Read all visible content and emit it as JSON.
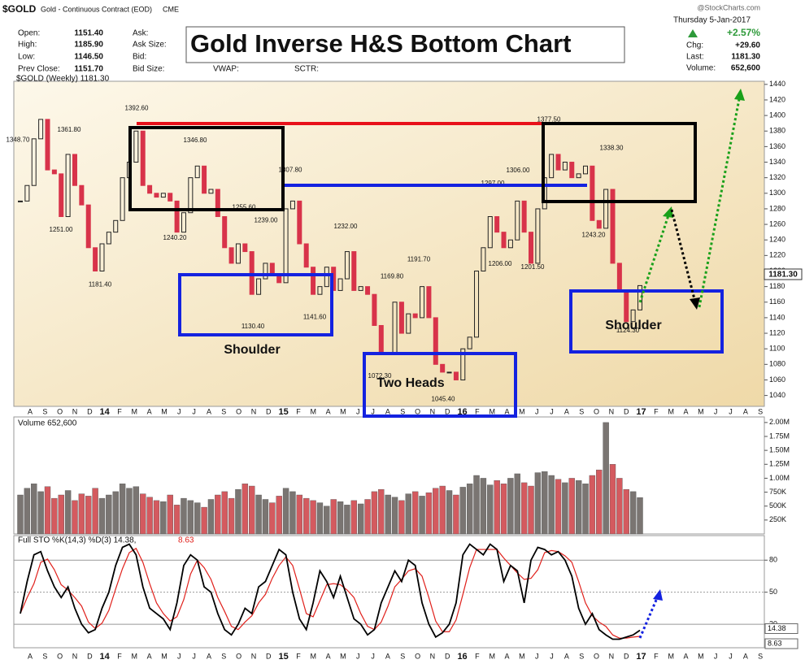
{
  "header": {
    "symbol": "$GOLD",
    "name": "Gold - Continuous Contract (EOD)",
    "exchange": "CME",
    "open_label": "Open:",
    "open": "1151.40",
    "high_label": "High:",
    "high": "1185.90",
    "low_label": "Low:",
    "low": "1146.50",
    "prev_label": "Prev Close:",
    "prev": "1151.70",
    "ask": "Ask:",
    "ask_size": "Ask Size:",
    "bid": "Bid:",
    "bid_size": "Bid Size:",
    "vwap": "VWAP:",
    "sctr": "SCTR:",
    "date": "Thursday  5-Jan-2017",
    "pct": "+2.57%",
    "chg_label": "Chg:",
    "chg": "+29.60",
    "last_label": "Last:",
    "last": "1181.30",
    "volume_label": "Volume:",
    "volume": "652,600",
    "source": "@StockCharts.com"
  },
  "chart_data": [
    {
      "type": "candlestick",
      "title": "Gold Inverse H&S Bottom Chart",
      "label": "$GOLD (Weekly) 1181.30",
      "color_up": "#222222",
      "color_down": "#d8334a",
      "values": [
        1290,
        1310,
        1370,
        1395,
        1330,
        1325,
        1270,
        1350,
        1310,
        1285,
        1230,
        1200,
        1235,
        1250,
        1265,
        1320,
        1340,
        1380,
        1310,
        1300,
        1295,
        1300,
        1290,
        1250,
        1275,
        1320,
        1335,
        1300,
        1305,
        1270,
        1230,
        1210,
        1235,
        1225,
        1170,
        1190,
        1210,
        1195,
        1185,
        1280,
        1290,
        1235,
        1205,
        1170,
        1180,
        1205,
        1175,
        1190,
        1225,
        1175,
        1180,
        1170,
        1130,
        1095,
        1095,
        1160,
        1120,
        1145,
        1140,
        1180,
        1140,
        1080,
        1070,
        1070,
        1060,
        1100,
        1115,
        1200,
        1230,
        1270,
        1250,
        1230,
        1240,
        1290,
        1250,
        1210,
        1280,
        1320,
        1350,
        1330,
        1340,
        1320,
        1325,
        1335,
        1265,
        1255,
        1305,
        1210,
        1175,
        1135,
        1150,
        1181.3
      ],
      "ylim": [
        1026,
        1444
      ],
      "yticks": [
        1040,
        1060,
        1080,
        1100,
        1120,
        1140,
        1160,
        1180,
        1200,
        1220,
        1240,
        1260,
        1280,
        1300,
        1320,
        1340,
        1360,
        1380,
        1400,
        1420,
        1440
      ],
      "x_labels": [
        "A",
        "S",
        "O",
        "N",
        "D",
        "14",
        "F",
        "M",
        "A",
        "M",
        "J",
        "J",
        "A",
        "S",
        "O",
        "N",
        "D",
        "15",
        "F",
        "M",
        "A",
        "M",
        "J",
        "J",
        "A",
        "S",
        "O",
        "N",
        "D",
        "16",
        "F",
        "M",
        "A",
        "M",
        "J",
        "J",
        "A",
        "S",
        "O",
        "N",
        "D",
        "17",
        "F",
        "M",
        "A",
        "M",
        "J",
        "J",
        "A",
        "S"
      ],
      "annotations": [
        {
          "value": 1348.7,
          "label": "1348.70"
        },
        {
          "value": 1361.8,
          "label": "1361.80"
        },
        {
          "value": 1392.6,
          "label": "1392.60"
        },
        {
          "value": 1346.8,
          "label": "1346.80"
        },
        {
          "value": 1251,
          "label": "1251.00"
        },
        {
          "value": 1181.4,
          "label": "1181.40"
        },
        {
          "value": 1240.2,
          "label": "1240.20"
        },
        {
          "value": 1255.6,
          "label": "1255.60"
        },
        {
          "value": 1239,
          "label": "1239.00"
        },
        {
          "value": 1130.4,
          "label": "1130.40"
        },
        {
          "value": 1307.8,
          "label": "1307.80"
        },
        {
          "value": 1141.6,
          "label": "1141.60"
        },
        {
          "value": 1232,
          "label": "1232.00"
        },
        {
          "value": 1169.8,
          "label": "1169.80"
        },
        {
          "value": 1191.7,
          "label": "1191.70"
        },
        {
          "value": 1072.3,
          "label": "1072.30"
        },
        {
          "value": 1045.4,
          "label": "1045.40"
        },
        {
          "value": 1297,
          "label": "1297.00"
        },
        {
          "value": 1306,
          "label": "1306.00"
        },
        {
          "value": 1206,
          "label": "1206.00"
        },
        {
          "value": 1201.5,
          "label": "1201.50"
        },
        {
          "value": 1377.5,
          "label": "1377.50"
        },
        {
          "value": 1338.3,
          "label": "1338.30"
        },
        {
          "value": 1243.2,
          "label": "1243.20"
        },
        {
          "value": 1124.3,
          "label": "1124.30"
        }
      ],
      "patterns": [
        "Shoulder",
        "Two Heads",
        "Shoulder"
      ]
    },
    {
      "type": "bar",
      "title": "Volume 652,600",
      "values": [
        700000,
        820000,
        900000,
        760000,
        850000,
        640000,
        700000,
        780000,
        600000,
        720000,
        680000,
        820000,
        640000,
        700000,
        760000,
        900000,
        820000,
        850000,
        720000,
        660000,
        600000,
        580000,
        700000,
        520000,
        640000,
        600000,
        560000,
        480000,
        620000,
        700000,
        760000,
        640000,
        800000,
        900000,
        860000,
        700000,
        620000,
        560000,
        680000,
        820000,
        760000,
        700000,
        640000,
        600000,
        560000,
        500000,
        620000,
        580000,
        520000,
        600000,
        540000,
        620000,
        760000,
        800000,
        700000,
        660000,
        600000,
        720000,
        760000,
        680000,
        740000,
        820000,
        860000,
        780000,
        700000,
        840000,
        900000,
        1050000,
        1000000,
        880000,
        960000,
        900000,
        1000000,
        1080000,
        920000,
        860000,
        1100000,
        1120000,
        1050000,
        980000,
        920000,
        1000000,
        960000,
        900000,
        1050000,
        1150000,
        2000000,
        1250000,
        1000000,
        800000,
        760000,
        652600
      ],
      "color_up": "#7a7572",
      "color_down": "#d45a5f",
      "ylim": [
        0,
        2100000
      ],
      "yticks": [
        {
          "value": 250000,
          "label": "250K"
        },
        {
          "value": 500000,
          "label": "500K"
        },
        {
          "value": 750000,
          "label": "750K"
        },
        {
          "value": 1000000,
          "label": "1.00M"
        },
        {
          "value": 1250000,
          "label": "1.25M"
        },
        {
          "value": 1500000,
          "label": "1.50M"
        },
        {
          "value": 1750000,
          "label": "1.75M"
        },
        {
          "value": 2000000,
          "label": "2.00M"
        }
      ]
    },
    {
      "type": "line",
      "title": "Full STO %K(14,3) %D(3) 14.38,",
      "title_d": "8.63",
      "series": [
        {
          "color": "#000000",
          "values": [
            30,
            60,
            85,
            88,
            70,
            55,
            45,
            55,
            35,
            20,
            12,
            15,
            35,
            50,
            75,
            92,
            95,
            85,
            55,
            35,
            30,
            25,
            15,
            40,
            75,
            85,
            80,
            55,
            50,
            30,
            15,
            10,
            20,
            35,
            30,
            55,
            60,
            75,
            90,
            85,
            50,
            25,
            15,
            40,
            70,
            60,
            45,
            65,
            45,
            25,
            20,
            10,
            15,
            40,
            55,
            70,
            60,
            80,
            75,
            40,
            20,
            8,
            12,
            20,
            40,
            85,
            95,
            90,
            85,
            95,
            90,
            60,
            75,
            70,
            40,
            80,
            92,
            90,
            85,
            88,
            80,
            65,
            35,
            20,
            30,
            15,
            10,
            6,
            6,
            8,
            10,
            14.38
          ]
        },
        {
          "color": "#e0201b",
          "values": [
            30,
            45,
            58,
            78,
            81,
            71,
            57,
            52,
            45,
            37,
            22,
            16,
            21,
            33,
            53,
            72,
            87,
            91,
            78,
            58,
            40,
            30,
            23,
            27,
            43,
            67,
            80,
            73,
            62,
            45,
            32,
            18,
            15,
            22,
            28,
            40,
            48,
            63,
            75,
            83,
            75,
            53,
            30,
            27,
            42,
            57,
            58,
            57,
            52,
            45,
            30,
            18,
            15,
            22,
            37,
            55,
            62,
            70,
            72,
            65,
            45,
            23,
            13,
            13,
            24,
            48,
            73,
            90,
            90,
            90,
            90,
            82,
            75,
            68,
            62,
            63,
            71,
            87,
            89,
            88,
            84,
            78,
            60,
            40,
            28,
            22,
            18,
            10,
            7,
            7,
            8,
            8.63
          ]
        }
      ],
      "ylim": [
        -2,
        103
      ],
      "yticks": [
        20,
        50,
        80
      ]
    }
  ]
}
